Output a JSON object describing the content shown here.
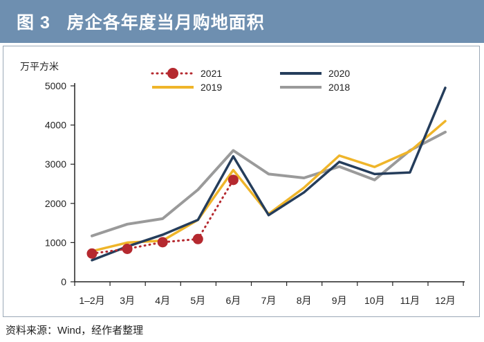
{
  "header": {
    "figure_label": "图 3",
    "title": "房企各年度当月购地面积"
  },
  "source": "资料来源：Wind，经作者整理",
  "colors": {
    "header_bg": "#6e8fb0",
    "s2021": "#b5292f",
    "s2020": "#253d5b",
    "s2019": "#efb52a",
    "s2018": "#9a9a9a",
    "axis": "#222222"
  },
  "chart_data": {
    "type": "line",
    "title": "房企各年度当月购地面积",
    "ylabel": "万平方米",
    "xlabel": "",
    "ylim": [
      0,
      5000
    ],
    "yticks": [
      0,
      1000,
      2000,
      3000,
      4000,
      5000
    ],
    "grid": false,
    "legend_position": "top",
    "categories": [
      "1–2月",
      "3月",
      "4月",
      "5月",
      "6月",
      "7月",
      "8月",
      "9月",
      "10月",
      "11月",
      "12月"
    ],
    "series": [
      {
        "name": "2021",
        "style": "dotted-markers",
        "color": "#b5292f",
        "values": [
          720,
          840,
          1010,
          1090,
          2600,
          null,
          null,
          null,
          null,
          null,
          null
        ]
      },
      {
        "name": "2020",
        "style": "solid",
        "color": "#253d5b",
        "values": [
          550,
          900,
          1200,
          1580,
          3200,
          1700,
          2280,
          3060,
          2750,
          2790,
          4950
        ]
      },
      {
        "name": "2019",
        "style": "solid",
        "color": "#efb52a",
        "values": [
          780,
          1000,
          1050,
          1580,
          2850,
          1730,
          2400,
          3220,
          2930,
          3330,
          4100
        ]
      },
      {
        "name": "2018",
        "style": "solid",
        "color": "#9a9a9a",
        "values": [
          1170,
          1470,
          1610,
          2350,
          3350,
          2750,
          2650,
          2940,
          2600,
          3350,
          3820
        ]
      }
    ]
  }
}
